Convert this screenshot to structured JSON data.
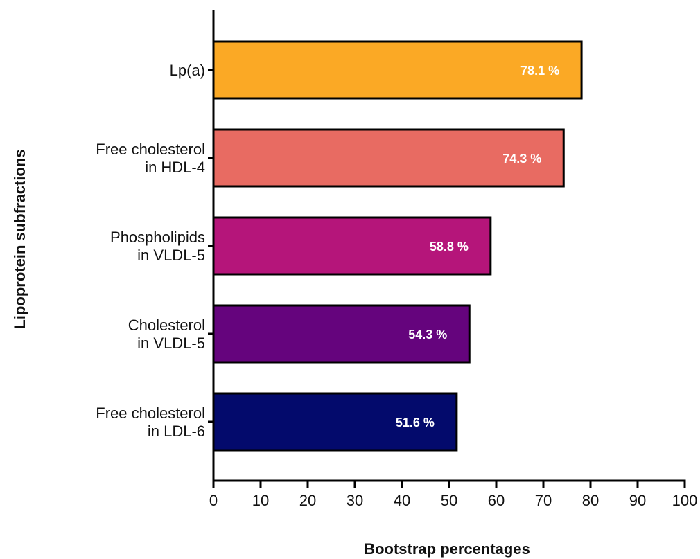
{
  "chart_data": {
    "type": "bar",
    "orientation": "horizontal",
    "categories": [
      [
        "Lp(a)"
      ],
      [
        "Free cholesterol",
        "in HDL-4"
      ],
      [
        "Phospholipids",
        "in VLDL-5"
      ],
      [
        "Cholesterol",
        "in VLDL-5"
      ],
      [
        "Free cholesterol",
        "in LDL-6"
      ]
    ],
    "values": [
      78.1,
      74.3,
      58.8,
      54.3,
      51.6
    ],
    "data_labels": [
      "78.1  %",
      "74.3 %",
      "58.8 %",
      "54.3 %",
      "51.6 %"
    ],
    "colors": [
      "#fba925",
      "#e86b62",
      "#b5157a",
      "#65047d",
      "#030a6c"
    ],
    "xlabel": "Bootstrap percentages",
    "ylabel": "Lipoprotein subfractions",
    "xlim": [
      0,
      100
    ],
    "xticks": [
      0,
      10,
      20,
      30,
      40,
      50,
      60,
      70,
      80,
      90,
      100
    ],
    "grid": false,
    "legend": "none"
  }
}
